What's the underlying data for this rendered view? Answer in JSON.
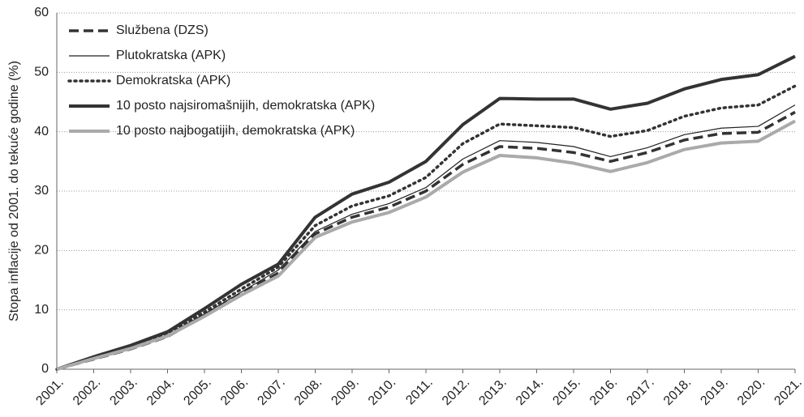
{
  "chart_data": {
    "type": "line",
    "ylabel": "Stopa inflacije od 2001. do tekuće godine (%)",
    "categories": [
      "2001.",
      "2002.",
      "2003.",
      "2004.",
      "2005.",
      "2006.",
      "2007.",
      "2008.",
      "2009.",
      "2010.",
      "2011.",
      "2012.",
      "2013.",
      "2014.",
      "2015.",
      "2016.",
      "2017.",
      "2018.",
      "2019.",
      "2020.",
      "2021."
    ],
    "series": [
      {
        "name": "Službena (DZS)",
        "color": "#333333",
        "dash": "dashed",
        "width": 3.5,
        "values": [
          0,
          1.7,
          3.4,
          5.5,
          9,
          12.8,
          16.2,
          22.8,
          25.6,
          27.3,
          30,
          34.5,
          37.5,
          37.2,
          36.5,
          35,
          36.5,
          38.6,
          39.7,
          39.9,
          43.3
        ]
      },
      {
        "name": "Plutokratska (APK)",
        "color": "#222222",
        "dash": "solid",
        "width": 1.2,
        "values": [
          0,
          1.9,
          3.6,
          5.8,
          9.3,
          13,
          16.7,
          23.2,
          26.1,
          27.9,
          30.6,
          35.4,
          38.5,
          38.2,
          37.5,
          35.8,
          37.3,
          39.5,
          40.6,
          40.9,
          44.5
        ]
      },
      {
        "name": "Demokratska (APK)",
        "color": "#333333",
        "dash": "dotted",
        "width": 3.5,
        "values": [
          0,
          2,
          3.8,
          6,
          9.6,
          13.5,
          17.2,
          24.2,
          27.5,
          29.2,
          32.3,
          38,
          41.3,
          41,
          40.7,
          39.2,
          40.2,
          42.6,
          44,
          44.5,
          47.7
        ]
      },
      {
        "name": "10 posto najsiromašnijih, demokratska (APK)",
        "color": "#333333",
        "dash": "solid",
        "width": 4,
        "values": [
          0,
          2.1,
          4,
          6.3,
          10.2,
          14.3,
          17.7,
          25.6,
          29.5,
          31.5,
          35,
          41.2,
          45.6,
          45.5,
          45.5,
          43.8,
          44.8,
          47.2,
          48.8,
          49.6,
          52.7
        ]
      },
      {
        "name": "10 posto najbogatijih, demokratska (APK)",
        "color": "#aaaaaa",
        "dash": "solid",
        "width": 4,
        "values": [
          0,
          1.8,
          3.5,
          5.6,
          8.9,
          12.5,
          15.7,
          22.2,
          24.8,
          26.4,
          29,
          33.2,
          36,
          35.6,
          34.7,
          33.3,
          34.8,
          37,
          38.1,
          38.4,
          41.8
        ]
      }
    ],
    "ylim": [
      0,
      60
    ],
    "yticks": [
      0,
      10,
      20,
      30,
      40,
      50,
      60
    ],
    "grid": true,
    "legend": "top-left"
  }
}
